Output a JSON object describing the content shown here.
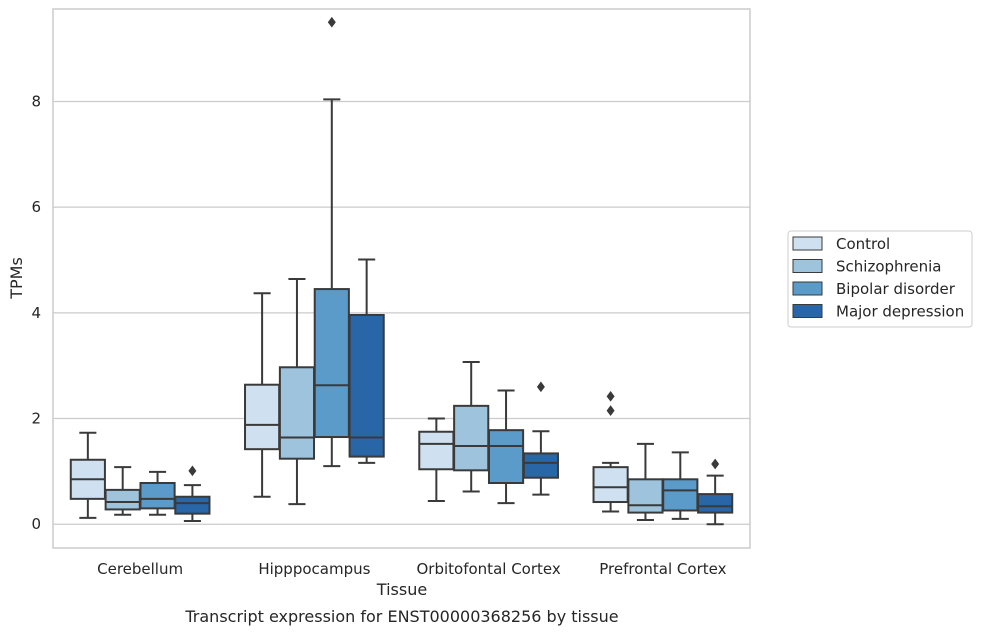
{
  "chart_data": {
    "type": "box",
    "title": "Transcript expression for ENST00000368256 by tissue",
    "xlabel": "Tissue",
    "ylabel": "TPMs",
    "ylim": [
      -0.45,
      9.75
    ],
    "yticks": [
      0,
      2,
      4,
      6,
      8
    ],
    "categories": [
      "Cerebellum",
      "Hipppocampus",
      "Orbitofontal Cortex",
      "Prefrontal Cortex"
    ],
    "grid": "horizontal",
    "legend_position": "right",
    "series": [
      {
        "name": "Control",
        "color": "#cfe0f0",
        "boxes": [
          {
            "whislo": 0.12,
            "q1": 0.48,
            "med": 0.85,
            "q3": 1.22,
            "whishi": 1.73,
            "fliers": []
          },
          {
            "whislo": 0.52,
            "q1": 1.42,
            "med": 1.88,
            "q3": 2.64,
            "whishi": 4.37,
            "fliers": []
          },
          {
            "whislo": 0.44,
            "q1": 1.04,
            "med": 1.52,
            "q3": 1.75,
            "whishi": 2.0,
            "fliers": []
          },
          {
            "whislo": 0.24,
            "q1": 0.42,
            "med": 0.7,
            "q3": 1.08,
            "whishi": 1.16,
            "fliers": [
              2.15,
              2.42
            ]
          }
        ]
      },
      {
        "name": "Schizophrenia",
        "color": "#9dc3dd",
        "boxes": [
          {
            "whislo": 0.18,
            "q1": 0.28,
            "med": 0.42,
            "q3": 0.65,
            "whishi": 1.08,
            "fliers": []
          },
          {
            "whislo": 0.38,
            "q1": 1.24,
            "med": 1.64,
            "q3": 2.97,
            "whishi": 4.64,
            "fliers": []
          },
          {
            "whislo": 0.62,
            "q1": 1.02,
            "med": 1.48,
            "q3": 2.24,
            "whishi": 3.07,
            "fliers": []
          },
          {
            "whislo": 0.08,
            "q1": 0.22,
            "med": 0.36,
            "q3": 0.85,
            "whishi": 1.52,
            "fliers": []
          }
        ]
      },
      {
        "name": "Bipolar disorder",
        "color": "#5a9bc9",
        "boxes": [
          {
            "whislo": 0.18,
            "q1": 0.3,
            "med": 0.48,
            "q3": 0.78,
            "whishi": 0.99,
            "fliers": []
          },
          {
            "whislo": 1.1,
            "q1": 1.65,
            "med": 2.63,
            "q3": 4.45,
            "whishi": 8.04,
            "fliers": [
              9.5
            ]
          },
          {
            "whislo": 0.4,
            "q1": 0.78,
            "med": 1.48,
            "q3": 1.78,
            "whishi": 2.53,
            "fliers": []
          },
          {
            "whislo": 0.1,
            "q1": 0.26,
            "med": 0.64,
            "q3": 0.85,
            "whishi": 1.36,
            "fliers": []
          }
        ]
      },
      {
        "name": "Major depression",
        "color": "#2966a8",
        "boxes": [
          {
            "whislo": 0.06,
            "q1": 0.2,
            "med": 0.4,
            "q3": 0.52,
            "whishi": 0.74,
            "fliers": [
              1.01
            ]
          },
          {
            "whislo": 1.16,
            "q1": 1.28,
            "med": 1.64,
            "q3": 3.96,
            "whishi": 5.01,
            "fliers": []
          },
          {
            "whislo": 0.56,
            "q1": 0.88,
            "med": 1.16,
            "q3": 1.34,
            "whishi": 1.76,
            "fliers": [
              2.6
            ]
          },
          {
            "whislo": 0.0,
            "q1": 0.22,
            "med": 0.34,
            "q3": 0.57,
            "whishi": 0.92,
            "fliers": [
              1.14
            ]
          }
        ]
      }
    ]
  }
}
